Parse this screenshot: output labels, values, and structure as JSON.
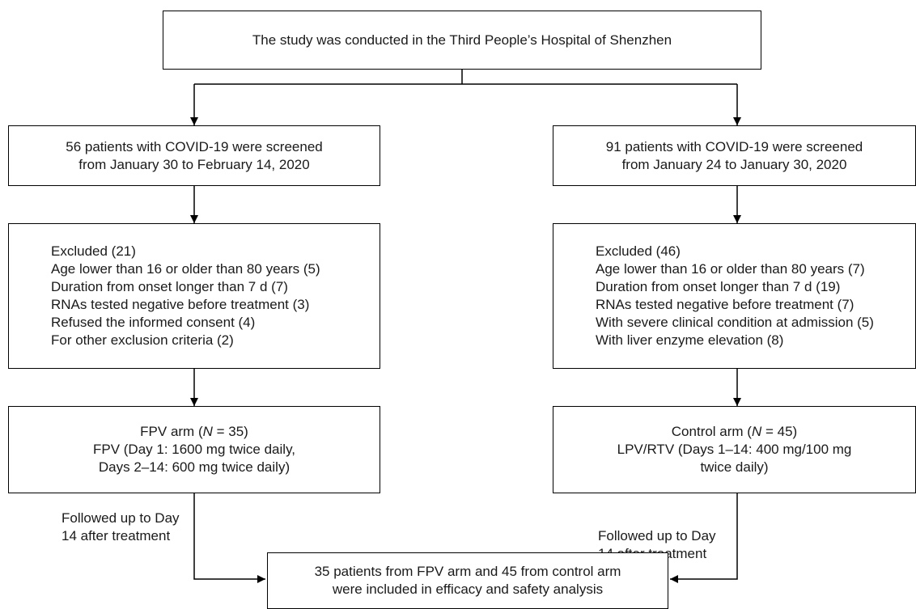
{
  "top_box": {
    "text": "The study was conducted in the Third People’s Hospital of Shenzhen"
  },
  "left": {
    "screened": [
      "56 patients with COVID-19 were screened",
      "from January 30  to February 14, 2020"
    ],
    "excluded": [
      "Excluded (21)",
      "Age lower than 16 or older than 80 years (5)",
      "Duration from onset longer than 7 d (7)",
      "RNAs tested negative before treatment (3)",
      "Refused the informed consent (4)",
      "For other exclusion criteria (2)"
    ],
    "arm": {
      "title_prefix": "FPV arm (",
      "title_italic": "N",
      "title_suffix": " = 35)",
      "lines": [
        "FPV (Day 1: 1600 mg twice daily,",
        "Days 2–14: 600 mg twice daily)"
      ]
    },
    "followup": [
      "Followed up to Day",
      "14 after treatment"
    ]
  },
  "right": {
    "screened": [
      "91 patients with COVID-19 were screened",
      "from January 24 to January 30, 2020"
    ],
    "excluded": [
      "Excluded (46)",
      "Age lower than 16 or older than 80 years (7)",
      "Duration from onset longer than 7 d (19)",
      "RNAs tested negative before treatment (7)",
      "With severe clinical condition at admission (5)",
      "With liver enzyme elevation (8)"
    ],
    "arm": {
      "title_prefix": "Control arm (",
      "title_italic": "N",
      "title_suffix": " = 45)",
      "lines": [
        "LPV/RTV (Days 1–14: 400 mg/100 mg",
        "twice daily)"
      ]
    },
    "followup": [
      "Followed up to Day",
      "14 after treatment"
    ]
  },
  "bottom_box": {
    "lines": [
      "35 patients from FPV arm and 45 from control arm",
      "were included in efficacy and safety analysis"
    ]
  }
}
